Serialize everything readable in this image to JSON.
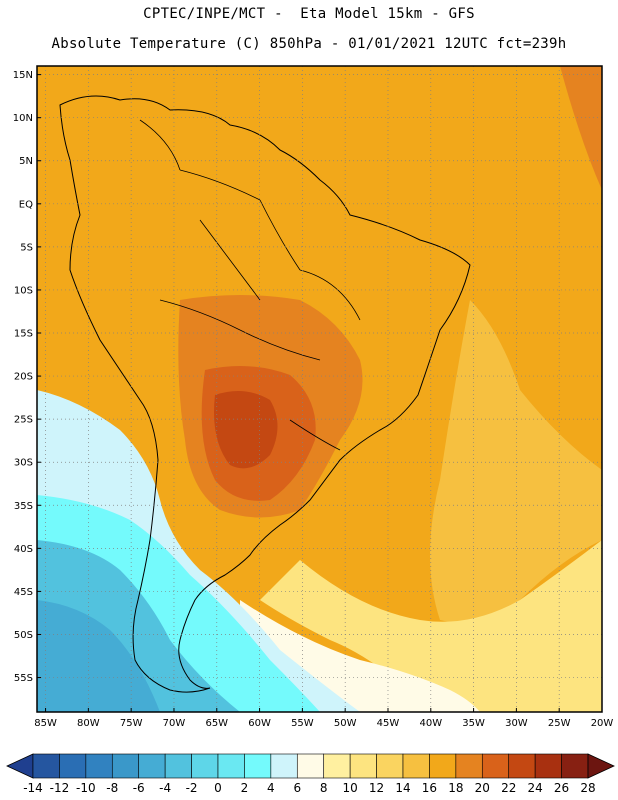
{
  "header": {
    "line1": "CPTEC/INPE/MCT -  Eta Model 15km - GFS",
    "line2": "Absolute Temperature (C) 850hPa - 01/01/2021 12UTC fct=239h"
  },
  "map": {
    "lon_range": [
      -86,
      -20
    ],
    "lat_range": [
      -59,
      16
    ],
    "lat_labels": [
      "15N",
      "10N",
      "5N",
      "EQ",
      "5S",
      "10S",
      "15S",
      "20S",
      "25S",
      "30S",
      "35S",
      "40S",
      "45S",
      "50S",
      "55S"
    ],
    "lat_values": [
      15,
      10,
      5,
      0,
      -5,
      -10,
      -15,
      -20,
      -25,
      -30,
      -35,
      -40,
      -45,
      -50,
      -55
    ],
    "lon_labels": [
      "85W",
      "80W",
      "75W",
      "70W",
      "65W",
      "60W",
      "55W",
      "50W",
      "45W",
      "40W",
      "35W",
      "30W",
      "25W",
      "20W"
    ],
    "lon_values": [
      -85,
      -80,
      -75,
      -70,
      -65,
      -60,
      -55,
      -50,
      -45,
      -40,
      -35,
      -30,
      -25,
      -20
    ]
  },
  "colorbar": {
    "labels": [
      "-14",
      "-12",
      "-10",
      "-8",
      "-6",
      "-4",
      "-2",
      "0",
      "2",
      "4",
      "6",
      "8",
      "10",
      "12",
      "14",
      "16",
      "18",
      "20",
      "22",
      "24",
      "26",
      "28"
    ],
    "colors": [
      "#1f3f8f",
      "#2556a0",
      "#2a6eb4",
      "#3182c0",
      "#3a98c9",
      "#45acd4",
      "#52c2de",
      "#5ed6e8",
      "#6ae8f2",
      "#74fafc",
      "#cff4fb",
      "#fffbe7",
      "#fff0a0",
      "#fde480",
      "#fad460",
      "#f6c040",
      "#f2a81a",
      "#e58320",
      "#d9621a",
      "#c44812",
      "#a83010",
      "#872012",
      "#6c1510"
    ],
    "unit": "C"
  }
}
